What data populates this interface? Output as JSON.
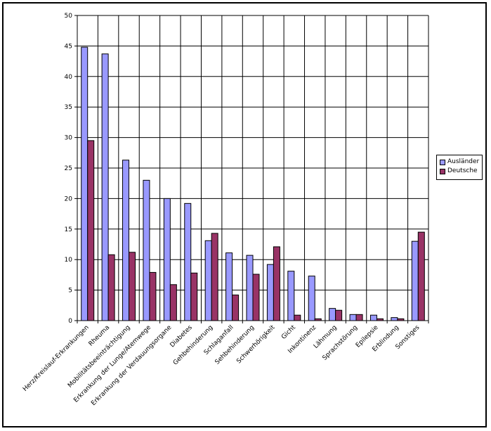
{
  "chart_data": {
    "type": "bar",
    "categories": [
      "Herz/Kreislauf-Erkrankungen",
      "Rheuma",
      "Mobilitätsbeeinträchtigung",
      "Erkrankung der Lunge/Atemwege",
      "Erkrankung der Verdauungsorgane",
      "Diabetes",
      "Gehbehinderung",
      "Schlaganfall",
      "Sehbehinderung",
      "Schwerhörigkeit",
      "Gicht",
      "Inkontinenz",
      "Lähmung",
      "Sprachstörung",
      "Epilepsie",
      "Erblindung",
      "Sonstiges"
    ],
    "series": [
      {
        "name": "Ausländer",
        "color": "#9999FF",
        "values": [
          44.8,
          43.7,
          26.3,
          23.0,
          20.0,
          19.2,
          13.1,
          11.1,
          10.7,
          9.2,
          8.1,
          7.3,
          2.0,
          1.0,
          0.9,
          0.5,
          13.0
        ]
      },
      {
        "name": "Deutsche",
        "color": "#993366",
        "values": [
          29.5,
          10.8,
          11.2,
          7.9,
          5.9,
          7.8,
          14.3,
          4.2,
          7.6,
          12.1,
          0.9,
          0.3,
          1.7,
          1.0,
          0.3,
          0.3,
          14.5
        ]
      }
    ],
    "y_ticks": [
      0,
      5,
      10,
      15,
      20,
      25,
      30,
      35,
      40,
      45,
      50
    ],
    "ylim": [
      0,
      50
    ],
    "grid": true,
    "legend_position": "right"
  }
}
